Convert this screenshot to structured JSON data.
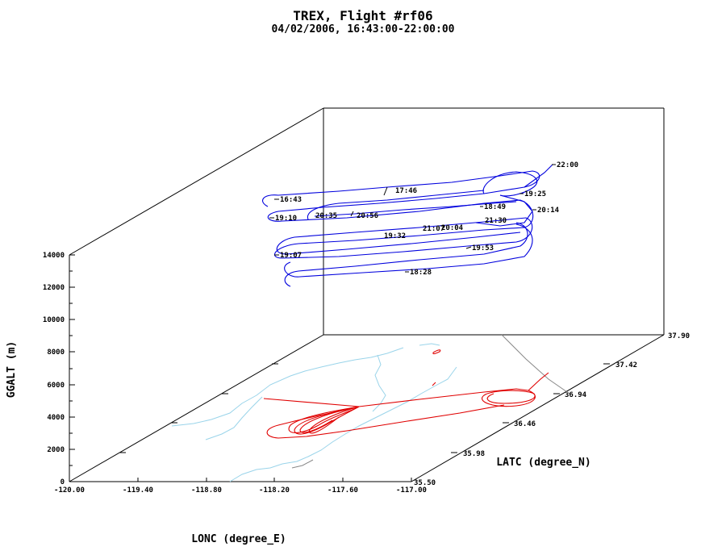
{
  "chart_data": {
    "type": "line3d",
    "title": "TREX, Flight #rf06",
    "subtitle": "04/02/2006, 16:43:00-22:00:00",
    "xlabel": "LONC (degree_E)",
    "ylabel": "LATC (degree_N)",
    "zlabel": "GGALT (m)",
    "x_ticks": [
      "-120.00",
      "-119.40",
      "-118.80",
      "-118.20",
      "-117.60",
      "-117.00"
    ],
    "y_ticks": [
      "35.50",
      "35.98",
      "36.46",
      "36.94",
      "37.42",
      "37.90"
    ],
    "z_ticks": [
      "0",
      "2000",
      "4000",
      "6000",
      "8000",
      "10000",
      "12000",
      "14000"
    ],
    "xlim": [
      -120.0,
      -117.0
    ],
    "ylim": [
      35.5,
      37.9
    ],
    "zlim": [
      0,
      14000
    ],
    "time_labels": [
      "16:43",
      "17:46",
      "18:28",
      "18:49",
      "19:07",
      "19:10",
      "19:25",
      "19:32",
      "19:53",
      "20:04",
      "20:14",
      "20:35",
      "20:56",
      "21:07",
      "21:30",
      "22:00"
    ],
    "series": [
      {
        "name": "flight track",
        "color": "#0000dd"
      },
      {
        "name": "ground projection",
        "color": "#e00000"
      },
      {
        "name": "coastline / boundaries",
        "color": "#9ad4ea"
      }
    ]
  }
}
